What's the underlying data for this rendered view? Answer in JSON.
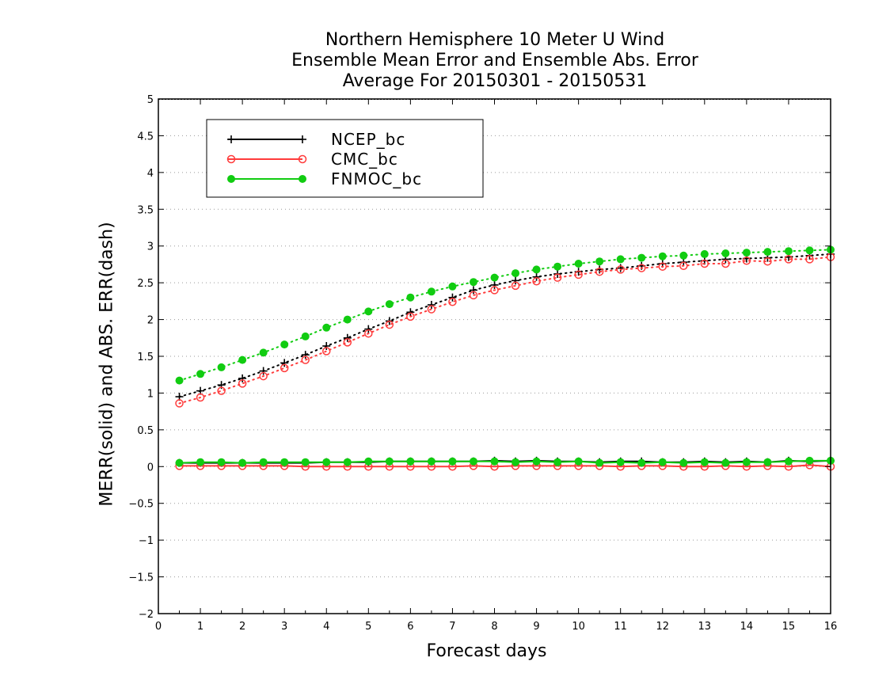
{
  "chart_data": {
    "type": "line",
    "title": [
      "Northern Hemisphere 10 Meter U Wind",
      "Ensemble Mean Error and Ensemble Abs. Error",
      "Average For 20150301 - 20150531"
    ],
    "xlabel": "Forecast days",
    "ylabel": "MERR(solid) and ABS. ERR(dash)",
    "xlim": [
      0,
      16
    ],
    "ylim": [
      -2,
      5
    ],
    "xticks": [
      "0",
      "1",
      "2",
      "3",
      "4",
      "5",
      "6",
      "7",
      "8",
      "9",
      "10",
      "11",
      "12",
      "13",
      "14",
      "15",
      "16"
    ],
    "yticks": [
      "−2",
      "−1.5",
      "−1",
      "−0.5",
      "0",
      "0.5",
      "1",
      "1.5",
      "2",
      "2.5",
      "3",
      "3.5",
      "4",
      "4.5",
      "5"
    ],
    "ytick_values": [
      -2,
      -1.5,
      -1,
      -0.5,
      0,
      0.5,
      1,
      1.5,
      2,
      2.5,
      3,
      3.5,
      4,
      4.5,
      5
    ],
    "grid": true,
    "legend_position": "top-left",
    "x": [
      0.5,
      1,
      1.5,
      2,
      2.5,
      3,
      3.5,
      4,
      4.5,
      5,
      5.5,
      6,
      6.5,
      7,
      7.5,
      8,
      8.5,
      9,
      9.5,
      10,
      10.5,
      11,
      11.5,
      12,
      12.5,
      13,
      13.5,
      14,
      14.5,
      15,
      15.5,
      16
    ],
    "series": [
      {
        "name": "NCEP_bc",
        "color": "#000000",
        "marker": "plus",
        "merr": [
          0.05,
          0.05,
          0.05,
          0.05,
          0.05,
          0.05,
          0.05,
          0.06,
          0.06,
          0.06,
          0.07,
          0.07,
          0.07,
          0.07,
          0.07,
          0.08,
          0.07,
          0.08,
          0.07,
          0.07,
          0.06,
          0.07,
          0.07,
          0.06,
          0.06,
          0.07,
          0.06,
          0.07,
          0.06,
          0.08,
          0.07,
          0.08
        ],
        "abs_err": [
          0.95,
          1.03,
          1.11,
          1.2,
          1.3,
          1.41,
          1.52,
          1.64,
          1.75,
          1.87,
          1.98,
          2.1,
          2.2,
          2.3,
          2.4,
          2.47,
          2.53,
          2.58,
          2.62,
          2.65,
          2.68,
          2.7,
          2.73,
          2.76,
          2.78,
          2.8,
          2.82,
          2.83,
          2.84,
          2.85,
          2.87,
          2.89
        ]
      },
      {
        "name": "CMC_bc",
        "color": "#ff3b3b",
        "marker": "open-circle",
        "merr": [
          0.01,
          0.01,
          0.01,
          0.01,
          0.01,
          0.01,
          0.0,
          0.0,
          0.0,
          0.0,
          0.0,
          0.0,
          0.0,
          0.0,
          0.01,
          0.0,
          0.01,
          0.01,
          0.01,
          0.01,
          0.01,
          0.0,
          0.01,
          0.01,
          0.0,
          0.0,
          0.01,
          0.0,
          0.01,
          0.0,
          0.02,
          0.0
        ],
        "abs_err": [
          0.86,
          0.94,
          1.03,
          1.13,
          1.23,
          1.34,
          1.45,
          1.57,
          1.69,
          1.81,
          1.93,
          2.04,
          2.14,
          2.24,
          2.33,
          2.4,
          2.46,
          2.52,
          2.57,
          2.61,
          2.65,
          2.68,
          2.7,
          2.72,
          2.73,
          2.76,
          2.76,
          2.8,
          2.79,
          2.82,
          2.82,
          2.85
        ]
      },
      {
        "name": "FNMOC_bc",
        "color": "#11cc11",
        "marker": "filled-circle",
        "merr": [
          0.05,
          0.06,
          0.06,
          0.05,
          0.06,
          0.06,
          0.06,
          0.06,
          0.06,
          0.07,
          0.07,
          0.07,
          0.07,
          0.07,
          0.07,
          0.07,
          0.06,
          0.07,
          0.06,
          0.07,
          0.05,
          0.06,
          0.05,
          0.06,
          0.05,
          0.06,
          0.05,
          0.06,
          0.06,
          0.07,
          0.08,
          0.08
        ],
        "abs_err": [
          1.17,
          1.26,
          1.35,
          1.45,
          1.55,
          1.66,
          1.77,
          1.89,
          2.0,
          2.11,
          2.21,
          2.3,
          2.38,
          2.45,
          2.51,
          2.57,
          2.63,
          2.68,
          2.72,
          2.76,
          2.79,
          2.82,
          2.84,
          2.86,
          2.87,
          2.89,
          2.9,
          2.91,
          2.92,
          2.93,
          2.94,
          2.95
        ]
      }
    ]
  }
}
